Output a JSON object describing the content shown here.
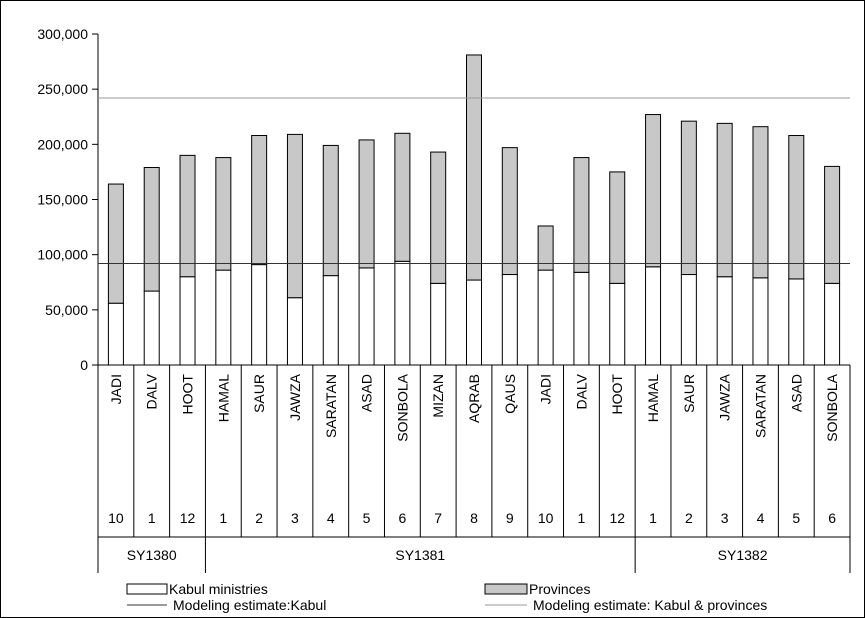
{
  "chart_data": {
    "type": "bar",
    "stacked": true,
    "yticks": [
      "0",
      "50,000",
      "100,000",
      "150,000",
      "200,000",
      "250,000",
      "300,000"
    ],
    "ylim": [
      0,
      300000
    ],
    "categories": [
      "JADI",
      "DALV",
      "HOOT",
      "HAMAL",
      "SAUR",
      "JAWZA",
      "SARATAN",
      "ASAD",
      "SONBOLA",
      "MIZAN",
      "AQRAB",
      "QAUS",
      "JADI",
      "DALV",
      "HOOT",
      "HAMAL",
      "SAUR",
      "JAWZA",
      "SARATAN",
      "ASAD",
      "SONBOLA"
    ],
    "month_numbers": [
      "10",
      "1",
      "12",
      "1",
      "2",
      "3",
      "4",
      "5",
      "6",
      "7",
      "8",
      "9",
      "10",
      "1",
      "12",
      "1",
      "2",
      "3",
      "4",
      "5",
      "6"
    ],
    "groups": [
      {
        "label": "SY1380",
        "start": 0,
        "end": 2
      },
      {
        "label": "SY1381",
        "start": 3,
        "end": 14
      },
      {
        "label": "SY1382",
        "start": 15,
        "end": 20
      }
    ],
    "series": [
      {
        "name": "Kabul ministries",
        "color": "#ffffff",
        "values": [
          56000,
          67000,
          80000,
          86000,
          91000,
          61000,
          81000,
          88000,
          94000,
          74000,
          77000,
          82000,
          86000,
          84000,
          74000,
          89000,
          82000,
          80000,
          79000,
          78000,
          74000
        ]
      },
      {
        "name": "Provinces",
        "color": "#c8c8c8",
        "values": [
          108000,
          112000,
          110000,
          102000,
          117000,
          148000,
          118000,
          116000,
          116000,
          119000,
          204000,
          115000,
          40000,
          104000,
          101000,
          138000,
          139000,
          139000,
          137000,
          130000,
          106000
        ]
      }
    ],
    "lines": [
      {
        "name": "Modeling estimate:Kabul",
        "value": 92000,
        "color": "#333333"
      },
      {
        "name": "Modeling estimate: Kabul & provinces",
        "value": 242000,
        "color": "#999999"
      }
    ],
    "legend_position": "bottom",
    "grid": false
  }
}
